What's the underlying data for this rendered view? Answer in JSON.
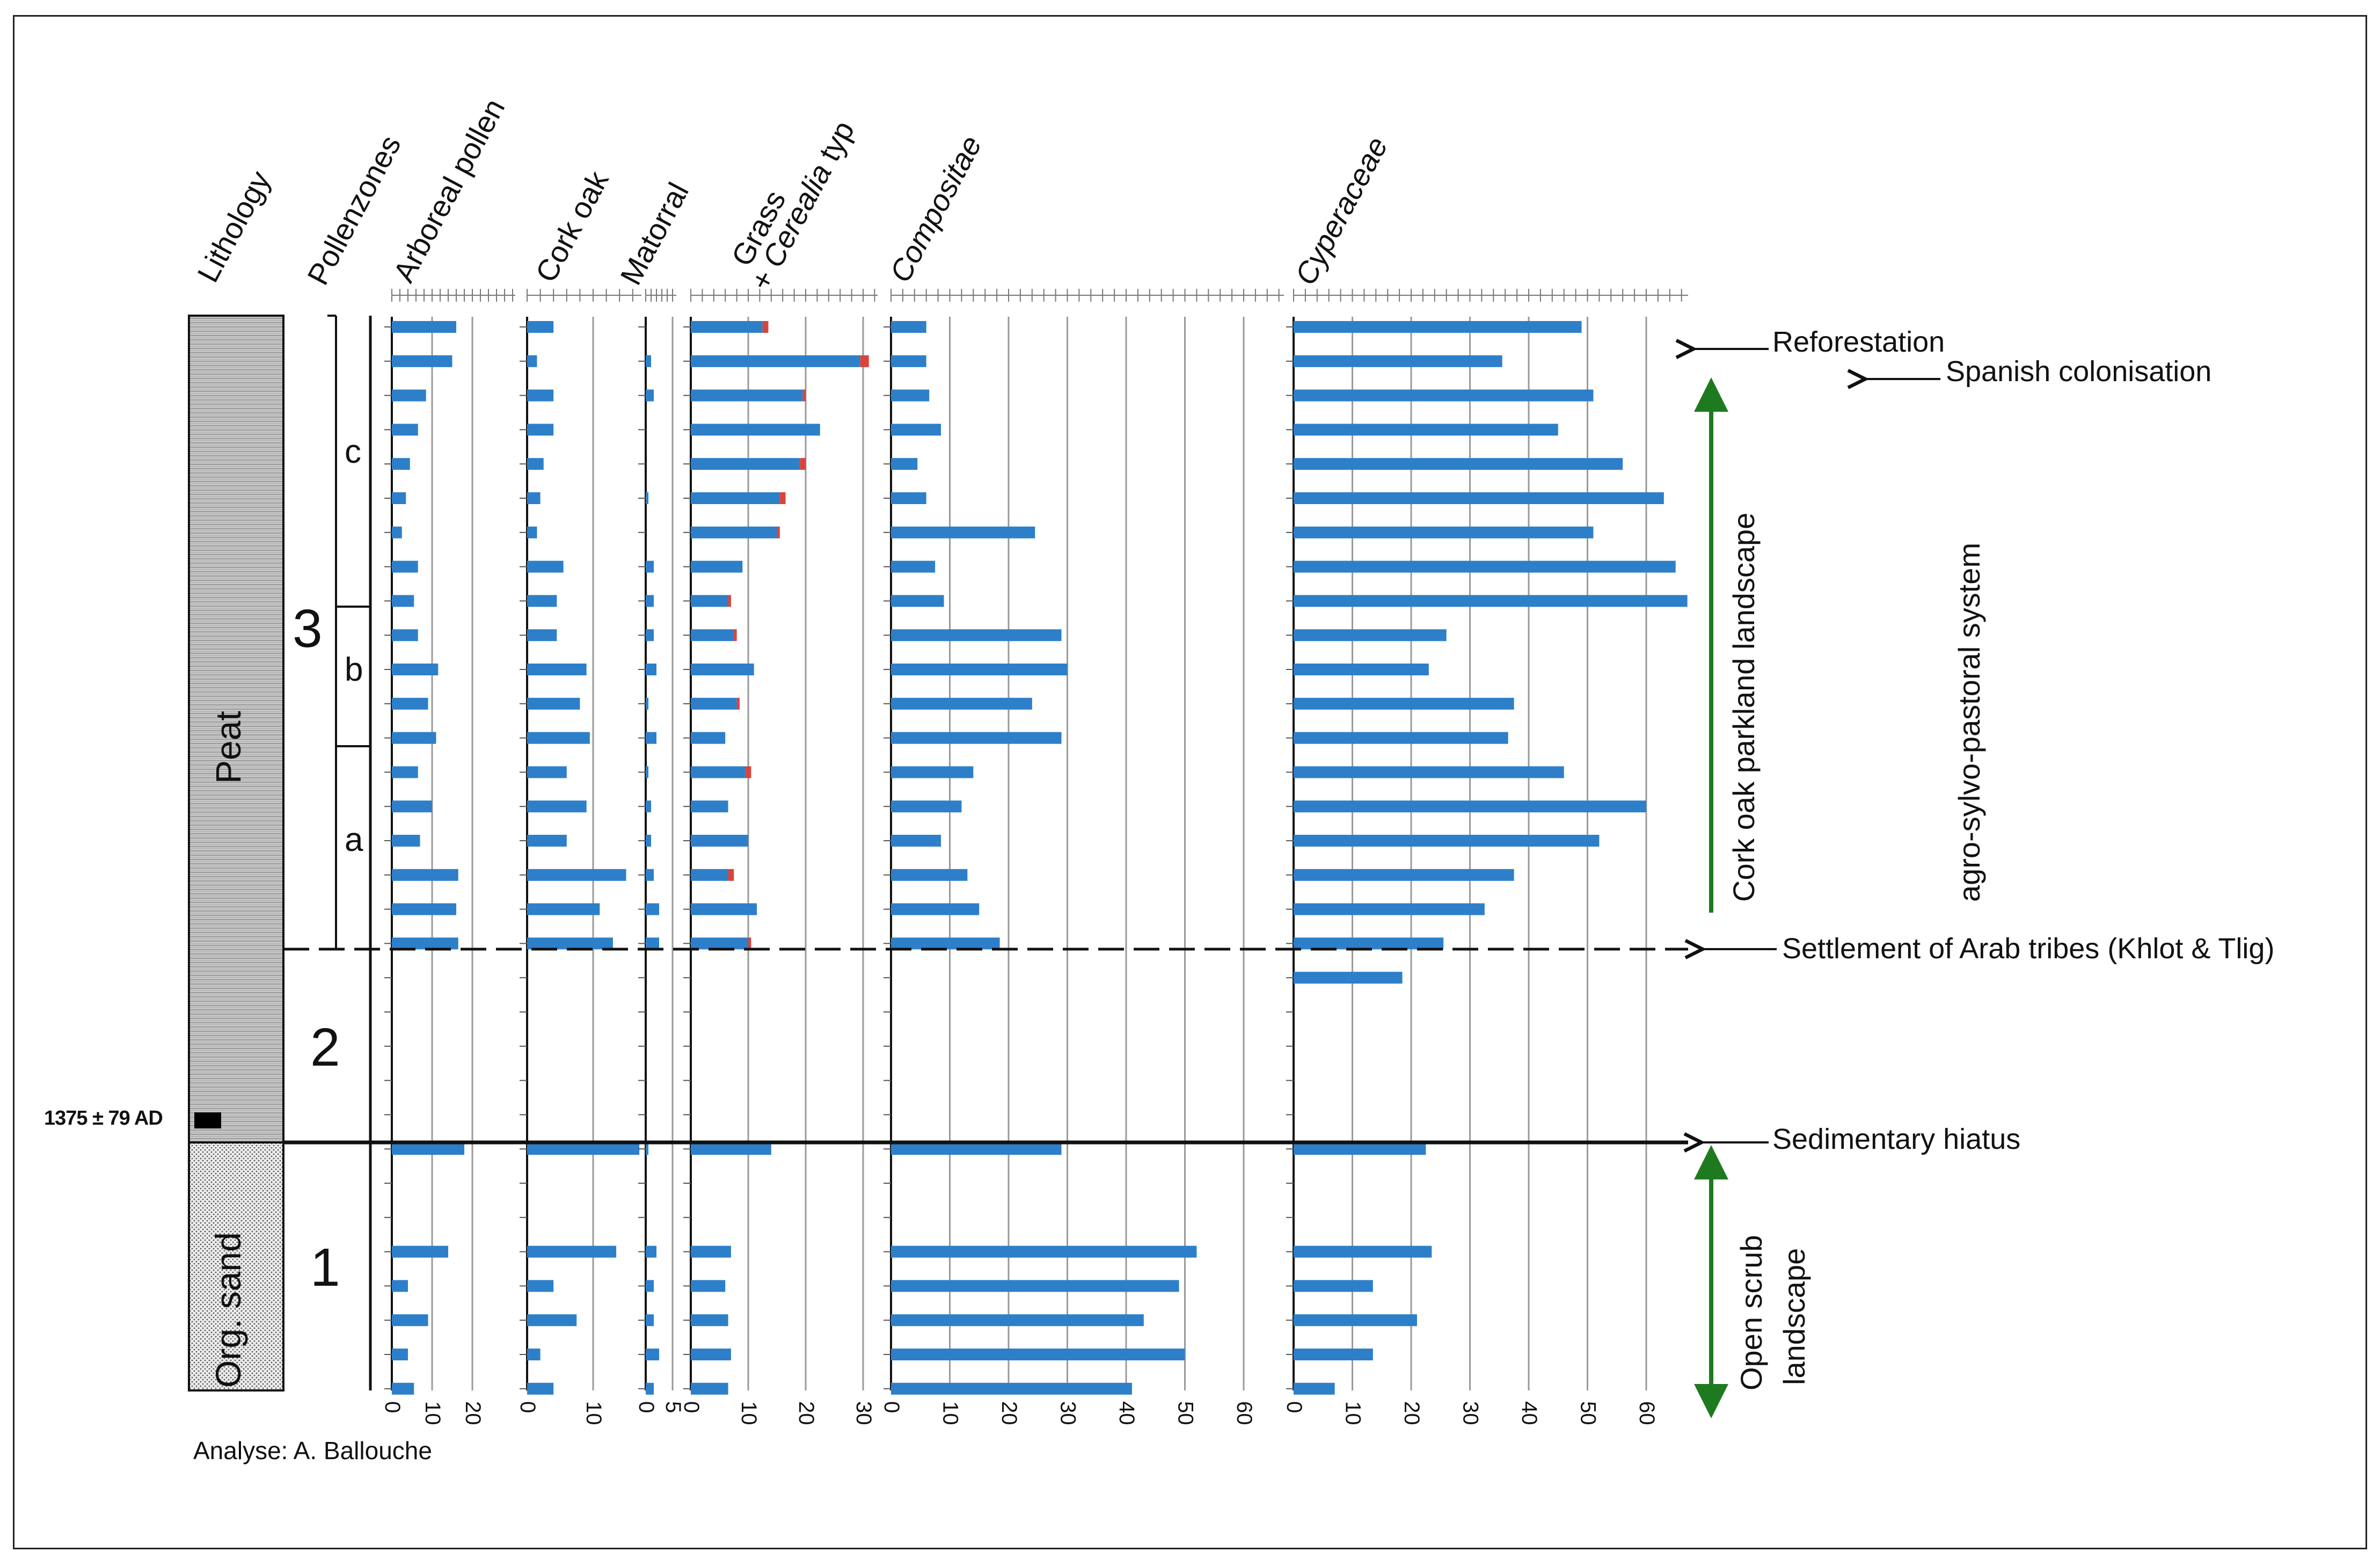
{
  "chart_data": {
    "type": "bar",
    "title": "Pollen diagram",
    "credit": "Analyse: A. Ballouche",
    "samples": 32,
    "colors": {
      "bar": "#2e7fc9",
      "cerealia": "#d9443a",
      "arrow": "#1e7a1e",
      "grid": "#9a9a9a"
    },
    "headers": {
      "lithology": "Lithology",
      "zones": "Pollenzones",
      "arboreal": "Arboreal pollen",
      "cork": "Cork oak",
      "matorral": "Matorral",
      "grass_line1": "Grass",
      "grass_line2_prefix": "+ ",
      "grass_line2_italic": "Cerealia",
      "grass_line2_suffix": " typ",
      "compositae": "Compositae",
      "cyperaceae": "Cyperaceae"
    },
    "lithology": {
      "peat": "Peat",
      "sand": "Org. sand",
      "date": "1375 ± 79 AD"
    },
    "zones": {
      "z1": "1",
      "z2": "2",
      "z3": "3",
      "a": "a",
      "b": "b",
      "c": "c"
    },
    "annotations": {
      "reforestation": "Reforestation",
      "spanish": "Spanish colonisation",
      "settlement": "Settlement of Arab tribes (Khlot & Tlig)",
      "hiatus": "Sedimentary hiatus",
      "cork_landscape": "Cork oak parkland landscape",
      "agro": "agro-sylvo-pastoral system",
      "open_scrub_1": "Open scrub",
      "open_scrub_2": "landscape"
    },
    "series": [
      {
        "name": "Arboreal pollen",
        "key": "arboreal",
        "ticks": [
          0,
          10,
          20
        ],
        "tick_labels": [
          "0",
          "10",
          "20"
        ],
        "rows": [
          0,
          1,
          2,
          3,
          4,
          5,
          6,
          7,
          8,
          9,
          10,
          11,
          12,
          13,
          14,
          15,
          16,
          17,
          18,
          24,
          27,
          28,
          29,
          30,
          31
        ],
        "values": [
          16,
          15,
          8.5,
          6.5,
          4.5,
          3.5,
          2.5,
          6.5,
          5.5,
          6.5,
          11.5,
          9,
          11,
          6.5,
          10,
          7,
          16.5,
          16,
          16.5,
          18,
          14,
          4,
          9,
          4,
          5.5
        ]
      },
      {
        "name": "Cork oak",
        "key": "cork",
        "ticks": [
          0,
          10
        ],
        "tick_labels": [
          "0",
          "10"
        ],
        "rows": [
          0,
          1,
          2,
          3,
          4,
          5,
          6,
          7,
          8,
          9,
          10,
          11,
          12,
          13,
          14,
          15,
          16,
          17,
          18,
          24,
          27,
          28,
          29,
          30,
          31
        ],
        "values": [
          4,
          1.5,
          4,
          4,
          2.5,
          2,
          1.5,
          5.5,
          4.5,
          4.5,
          9,
          8,
          9.5,
          6,
          9,
          6,
          15,
          11,
          13,
          17,
          13.5,
          4,
          7.5,
          2,
          4
        ]
      },
      {
        "name": "Matorral",
        "key": "matorral",
        "ticks": [
          0,
          5
        ],
        "tick_labels": [
          "0",
          "5"
        ],
        "rows": [
          1,
          2,
          5,
          7,
          8,
          9,
          10,
          11,
          12,
          13,
          14,
          15,
          16,
          17,
          18,
          24,
          27,
          28,
          29,
          30,
          31
        ],
        "values": [
          1,
          1.5,
          0.5,
          1.5,
          1.5,
          1.5,
          2,
          0.5,
          2,
          0.5,
          1,
          1,
          1.5,
          2.5,
          2.5,
          0.5,
          2,
          1.5,
          1.5,
          2.5,
          1.5
        ]
      },
      {
        "name": "Grass + Cerealia typ",
        "key": "grass",
        "ticks": [
          0,
          10,
          20,
          30
        ],
        "tick_labels": [
          "0",
          "10",
          "20",
          "30"
        ],
        "rows": [
          0,
          1,
          2,
          3,
          4,
          5,
          6,
          7,
          8,
          9,
          10,
          11,
          12,
          13,
          14,
          15,
          16,
          17,
          18,
          24,
          27,
          28,
          29,
          30,
          31
        ],
        "values": [
          12.5,
          29.5,
          19.5,
          22.5,
          19,
          15.5,
          15,
          9,
          6.5,
          7.5,
          11,
          8,
          6,
          9.5,
          6.5,
          10,
          6.5,
          11.5,
          10,
          14,
          7,
          6,
          6.5,
          7,
          6.5
        ],
        "cerealia": [
          1,
          1.5,
          0.5,
          0,
          1,
          1,
          0.5,
          0,
          0.5,
          0.5,
          0,
          0.5,
          0,
          1,
          0,
          0,
          1,
          0,
          0.5,
          0,
          0,
          0,
          0,
          0,
          0
        ]
      },
      {
        "name": "Compositae",
        "key": "compositae",
        "ticks": [
          0,
          10,
          20,
          30,
          40,
          50,
          60
        ],
        "tick_labels": [
          "0",
          "10",
          "20",
          "30",
          "40",
          "50",
          "60"
        ],
        "rows": [
          0,
          1,
          2,
          3,
          4,
          5,
          6,
          7,
          8,
          9,
          10,
          11,
          12,
          13,
          14,
          15,
          16,
          17,
          18,
          24,
          27,
          28,
          29,
          30,
          31
        ],
        "values": [
          6,
          6,
          6.5,
          8.5,
          4.5,
          6,
          24.5,
          7.5,
          9,
          29,
          30,
          24,
          29,
          14,
          12,
          8.5,
          13,
          15,
          18.5,
          29,
          52,
          49,
          43,
          50,
          41
        ]
      },
      {
        "name": "Cyperaceae",
        "key": "cyperaceae",
        "ticks": [
          0,
          10,
          20,
          30,
          40,
          50,
          60
        ],
        "tick_labels": [
          "0",
          "10",
          "20",
          "30",
          "40",
          "50",
          "60"
        ],
        "rows": [
          0,
          1,
          2,
          3,
          4,
          5,
          6,
          7,
          8,
          9,
          10,
          11,
          12,
          13,
          14,
          15,
          16,
          17,
          18,
          19,
          24,
          27,
          28,
          29,
          30,
          31
        ],
        "values": [
          49,
          35.5,
          51,
          45,
          56,
          63,
          51,
          65,
          67,
          26,
          23,
          37.5,
          36.5,
          46,
          60,
          52,
          37.5,
          32.5,
          25.5,
          18.5,
          22.5,
          23.5,
          13.5,
          21,
          13.5,
          7
        ]
      }
    ]
  }
}
